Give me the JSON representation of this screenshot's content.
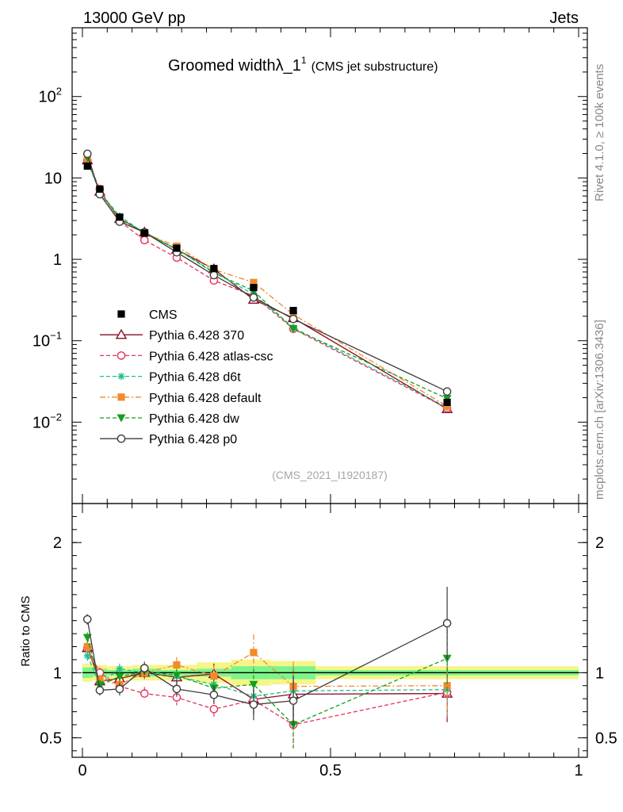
{
  "header": {
    "left": "13000 GeV pp",
    "right": "Jets",
    "side_version": "Rivet 4.1.0, ≥ 100k events",
    "side_source": "mcplots.cern.ch [arXiv:1306.3436]"
  },
  "colors": {
    "CMS": "#000000",
    "Pythia 6.428 370": "#8b0a20",
    "Pythia 6.428 atlas-csc": "#e8305a",
    "Pythia 6.428 d6t": "#1fbf8f",
    "Pythia 6.428 default": "#f28a2e",
    "Pythia 6.428 dw": "#14a01e",
    "Pythia 6.428 p0": "#3c3c3c",
    "band_inner": "#7cf58c",
    "band_outer": "#f5f58a"
  },
  "chart_data": [
    {
      "type": "line",
      "title": "Groomed widthλ_1",
      "title_sup": "1",
      "subtitle": "(CMS jet substructure)",
      "watermark": "(CMS_2021_I1920187)",
      "yscale": "log",
      "xlim": [
        0,
        1
      ],
      "ylim": [
        0.001,
        700
      ],
      "y_ticks": [
        {
          "value": 0.01,
          "base": "10",
          "exp": "−2"
        },
        {
          "value": 0.1,
          "base": "10",
          "exp": "−1"
        },
        {
          "value": 1,
          "base": "1",
          "exp": ""
        },
        {
          "value": 10,
          "base": "10",
          "exp": ""
        },
        {
          "value": 100,
          "base": "10",
          "exp": "2"
        }
      ],
      "legend_position": "middle-left",
      "x": [
        0.01,
        0.035,
        0.075,
        0.125,
        0.19,
        0.265,
        0.345,
        0.425,
        0.735
      ],
      "reference": {
        "name": "CMS",
        "values": [
          14,
          7.3,
          3.3,
          2.1,
          1.37,
          0.77,
          0.45,
          0.235,
          0.0175
        ]
      },
      "series": [
        {
          "name": "Pythia 6.428 370",
          "marker": "triangle",
          "dash": "solid",
          "values": [
            16.5,
            6.8,
            3.15,
            2.15,
            1.32,
            0.76,
            0.32,
            0.19,
            0.0145
          ]
        },
        {
          "name": "Pythia 6.428 atlas-csc",
          "marker": "circle-open",
          "dash": "dashed",
          "values": [
            16.5,
            7.3,
            2.95,
            1.72,
            1.05,
            0.55,
            0.355,
            0.14,
            0.0148
          ]
        },
        {
          "name": "Pythia 6.428 d6t",
          "marker": "star",
          "dash": "dashed",
          "values": [
            15.8,
            6.7,
            3.4,
            2.1,
            1.33,
            0.7,
            0.37,
            0.145,
            0.0152
          ]
        },
        {
          "name": "Pythia 6.428 default",
          "marker": "square",
          "dash": "dashdot",
          "values": [
            16.8,
            6.9,
            3.0,
            2.1,
            1.45,
            0.75,
            0.52,
            0.21,
            0.0157
          ]
        },
        {
          "name": "Pythia 6.428 dw",
          "marker": "triangle-down",
          "dash": "dashed",
          "values": [
            17.8,
            6.6,
            3.2,
            2.12,
            1.34,
            0.68,
            0.41,
            0.14,
            0.0195
          ]
        },
        {
          "name": "Pythia 6.428 p0",
          "marker": "circle-open",
          "dash": "solid",
          "values": [
            19.8,
            6.3,
            2.9,
            2.15,
            1.22,
            0.64,
            0.34,
            0.185,
            0.0238
          ]
        }
      ]
    },
    {
      "type": "line",
      "ylabel": "Ratio to CMS",
      "xlim": [
        0,
        1
      ],
      "ylim": [
        0.35,
        2.3
      ],
      "x_ticks": [
        {
          "value": 0,
          "label": "0"
        },
        {
          "value": 0.5,
          "label": "0.5"
        },
        {
          "value": 1,
          "label": "1"
        }
      ],
      "y_ticks": [
        {
          "value": 0.5,
          "label": "0.5"
        },
        {
          "value": 1,
          "label": "1"
        },
        {
          "value": 2,
          "label": "2"
        }
      ],
      "band_edges": [
        0,
        0.02,
        0.05,
        0.1,
        0.15,
        0.23,
        0.3,
        0.38,
        0.47,
        1
      ],
      "band_inner": [
        0.04,
        0.03,
        0.02,
        0.03,
        0.02,
        0.03,
        0.05,
        0.05,
        0.02
      ],
      "band_outer": [
        0.07,
        0.06,
        0.05,
        0.06,
        0.06,
        0.08,
        0.1,
        0.09,
        0.05
      ],
      "x": [
        0.01,
        0.035,
        0.075,
        0.125,
        0.19,
        0.265,
        0.345,
        0.425,
        0.735
      ],
      "series": [
        {
          "name": "Pythia 6.428 370",
          "values": [
            1.19,
            0.935,
            0.955,
            1.0,
            0.965,
            0.99,
            0.795,
            0.835,
            0.84
          ],
          "errors": [
            0.04,
            0.04,
            0.04,
            0.05,
            0.05,
            0.08,
            0.12,
            0.2,
            0.22
          ]
        },
        {
          "name": "Pythia 6.428 atlas-csc",
          "values": [
            1.19,
            1.0,
            0.895,
            0.84,
            0.81,
            0.72,
            0.79,
            0.6,
            0.85
          ],
          "errors": [
            0.04,
            0.04,
            0.05,
            0.05,
            0.06,
            0.07,
            0.12,
            0.18,
            0.22
          ]
        },
        {
          "name": "Pythia 6.428 d6t",
          "values": [
            1.13,
            0.915,
            1.03,
            1.0,
            0.97,
            0.91,
            0.82,
            0.86,
            0.87
          ],
          "errors": [
            0.04,
            0.04,
            0.04,
            0.05,
            0.05,
            0.07,
            0.11,
            0.18,
            0.22
          ]
        },
        {
          "name": "Pythia 6.428 default",
          "values": [
            1.2,
            0.945,
            0.91,
            1.0,
            1.06,
            0.975,
            1.155,
            0.895,
            0.9
          ],
          "errors": [
            0.04,
            0.04,
            0.04,
            0.05,
            0.06,
            0.08,
            0.14,
            0.19,
            0.22
          ]
        },
        {
          "name": "Pythia 6.428 dw",
          "values": [
            1.27,
            0.905,
            0.97,
            1.01,
            0.98,
            0.88,
            0.91,
            0.6,
            1.11
          ],
          "errors": [
            0.04,
            0.04,
            0.04,
            0.05,
            0.05,
            0.07,
            0.12,
            0.19,
            0.27
          ]
        },
        {
          "name": "Pythia 6.428 p0",
          "values": [
            1.41,
            0.865,
            0.875,
            1.035,
            0.875,
            0.83,
            0.755,
            0.785,
            1.38
          ],
          "errors": [
            0.04,
            0.04,
            0.05,
            0.05,
            0.06,
            0.07,
            0.12,
            0.19,
            0.28
          ]
        }
      ]
    }
  ]
}
